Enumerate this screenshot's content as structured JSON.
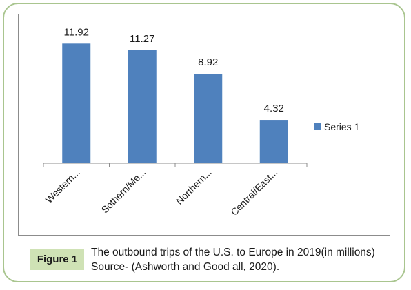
{
  "chart_data": {
    "type": "bar",
    "categories": [
      "Western...",
      "Sothern/Me...",
      "Northern...",
      "Central/East..."
    ],
    "series": [
      {
        "name": "Series 1",
        "values": [
          11.92,
          11.27,
          8.92,
          4.32
        ],
        "color": "#4f81bd"
      }
    ],
    "data_labels": [
      "11.92",
      "11.27",
      "8.92",
      "4.32"
    ],
    "ylim": [
      0,
      14
    ],
    "grid": false,
    "legend_position": "right",
    "title": "",
    "xlabel": "",
    "ylabel": ""
  },
  "caption": {
    "tag": "Figure 1",
    "text": "The outbound trips of the U.S. to Europe in 2019(in millions) Source- (Ashworth and Good all, 2020)."
  }
}
